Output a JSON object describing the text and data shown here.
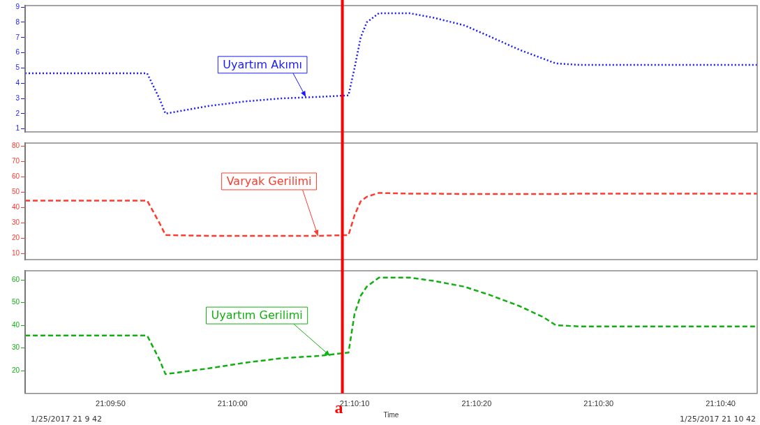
{
  "chart_data": [
    {
      "type": "line",
      "x": [
        21.161944,
        21.164722,
        21.165,
        21.165139,
        21.166111,
        21.166944,
        21.167778,
        21.168611,
        21.169306,
        21.169444,
        21.169583,
        21.169722,
        21.17,
        21.170694,
        21.17125,
        21.171944,
        21.1725,
        21.173194,
        21.17375,
        21.174028,
        21.174583,
        21.175833,
        21.178611
      ],
      "series": [
        {
          "color": "#1a1aff",
          "values": [
            4.65,
            4.65,
            3.0,
            2.0,
            2.5,
            2.8,
            3.0,
            3.1,
            3.2,
            5.0,
            7.0,
            8.0,
            8.6,
            8.6,
            8.3,
            7.8,
            7.1,
            6.2,
            5.6,
            5.3,
            5.2,
            5.2,
            5.2
          ]
        }
      ],
      "xlim": [
        21.161944,
        21.178611
      ],
      "ylim": [
        0.8,
        9.1
      ],
      "yticks": [
        1,
        2,
        3,
        4,
        5,
        6,
        7,
        8,
        9
      ],
      "tick_labels": "y",
      "grid": false,
      "legend": false,
      "marker": "none",
      "line_style": "dotted",
      "ref_lines": [
        {
          "axis": "x",
          "value": 21.169167,
          "color": "#ff0000"
        }
      ],
      "annotations": [
        {
          "text": "Uyartım Akımı",
          "x": 21.168333,
          "y": 3.1
        }
      ]
    },
    {
      "type": "line",
      "x": [
        21.161944,
        21.164722,
        21.165,
        21.165139,
        21.166111,
        21.166944,
        21.167778,
        21.168611,
        21.169306,
        21.169444,
        21.169583,
        21.169722,
        21.17,
        21.170694,
        21.17125,
        21.171944,
        21.1725,
        21.173194,
        21.17375,
        21.174028,
        21.174583,
        21.175833,
        21.178611
      ],
      "series": [
        {
          "color": "#ff3b2f",
          "values": [
            44.5,
            44.5,
            30,
            22,
            21.5,
            21.5,
            21.5,
            21.5,
            22,
            35,
            44,
            47,
            49.5,
            49,
            49,
            48.8,
            48.8,
            48.8,
            48.8,
            48.8,
            49,
            49,
            49
          ]
        }
      ],
      "xlim": [
        21.161944,
        21.178611
      ],
      "ylim": [
        6,
        82
      ],
      "yticks": [
        10,
        20,
        30,
        40,
        50,
        60,
        70,
        80
      ],
      "tick_labels": "y",
      "grid": false,
      "legend": false,
      "marker": "none",
      "line_style": "dashed",
      "ref_lines": [
        {
          "axis": "x",
          "value": 21.169167,
          "color": "#ff0000"
        }
      ],
      "annotations": [
        {
          "text": "Varyak Gerilimi",
          "x": 21.168611,
          "y": 21.5
        }
      ]
    },
    {
      "type": "line",
      "x": [
        21.161944,
        21.164722,
        21.165,
        21.165139,
        21.166111,
        21.166944,
        21.167778,
        21.168611,
        21.169306,
        21.169444,
        21.169583,
        21.169722,
        21.17,
        21.170694,
        21.17125,
        21.171944,
        21.1725,
        21.173194,
        21.17375,
        21.174028,
        21.174583,
        21.175833,
        21.178611
      ],
      "series": [
        {
          "color": "#10b010",
          "values": [
            35.5,
            35.5,
            25,
            18.5,
            21,
            23.5,
            25.5,
            26.5,
            28,
            45,
            53,
            57,
            61,
            61,
            59.5,
            57,
            53.5,
            48.5,
            43.5,
            40,
            39.5,
            39.5,
            39.5
          ]
        }
      ],
      "xlim": [
        21.161944,
        21.178611
      ],
      "ylim": [
        10,
        64
      ],
      "yticks": [
        20,
        30,
        40,
        50,
        60
      ],
      "xticks": [
        {
          "value": 21.163889,
          "label": "21:09:50"
        },
        {
          "value": 21.166667,
          "label": "21:10:00"
        },
        {
          "value": 21.169444,
          "label": "21:10:10"
        },
        {
          "value": 21.172222,
          "label": "21:10:20"
        },
        {
          "value": 21.175,
          "label": "21:10:30"
        },
        {
          "value": 21.177778,
          "label": "21:10:40"
        }
      ],
      "xlabel": "Time",
      "grid": false,
      "legend": false,
      "marker": "none",
      "line_style": "dashed",
      "ref_lines": [
        {
          "axis": "x",
          "value": 21.169167,
          "label": "a",
          "color": "#ff0000"
        }
      ],
      "annotations": [
        {
          "text": "Uyartım Gerilimi",
          "x": 21.168889,
          "y": 26.5
        },
        "1/25/2017 21 9 42",
        "1/25/2017 21 10 42"
      ]
    }
  ]
}
